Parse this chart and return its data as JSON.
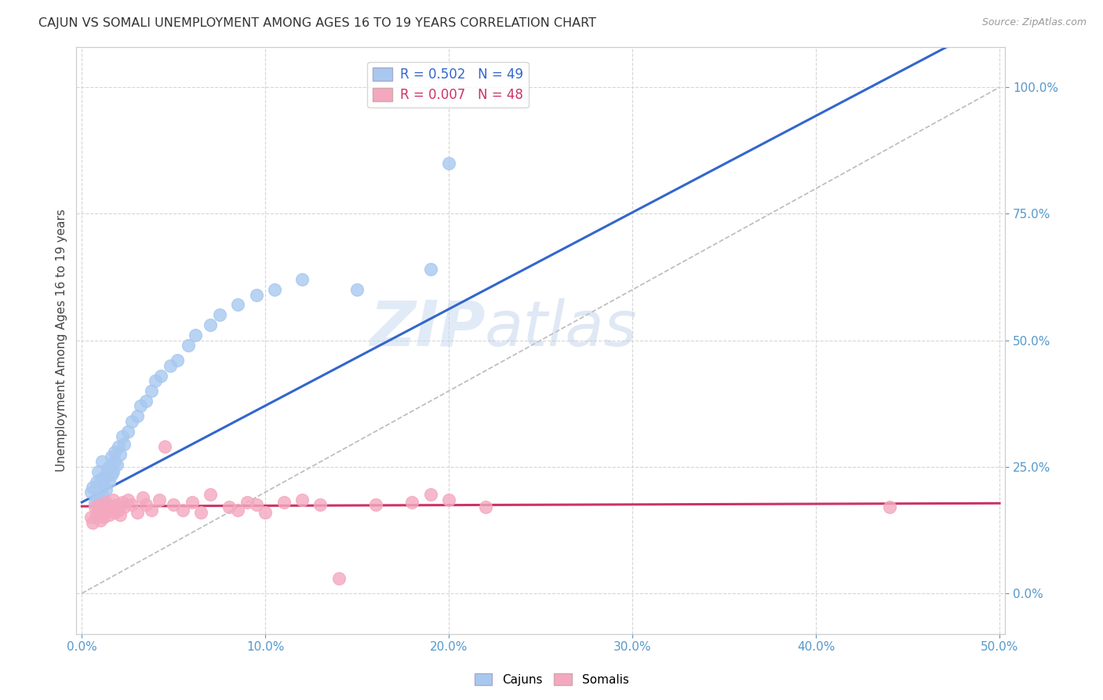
{
  "title": "CAJUN VS SOMALI UNEMPLOYMENT AMONG AGES 16 TO 19 YEARS CORRELATION CHART",
  "source": "Source: ZipAtlas.com",
  "ylabel": "Unemployment Among Ages 16 to 19 years",
  "xlim": [
    -0.003,
    0.503
  ],
  "ylim": [
    -0.08,
    1.08
  ],
  "yticks": [
    0.0,
    0.25,
    0.5,
    0.75,
    1.0
  ],
  "xticks": [
    0.0,
    0.1,
    0.2,
    0.3,
    0.4,
    0.5
  ],
  "cajun_R": 0.502,
  "cajun_N": 49,
  "somali_R": 0.007,
  "somali_N": 48,
  "cajun_color": "#a8c8f0",
  "somali_color": "#f4a8c0",
  "cajun_line_color": "#3366cc",
  "somali_line_color": "#cc3366",
  "diagonal_color": "#bbbbbb",
  "background_color": "#ffffff",
  "watermark_zip": "ZIP",
  "watermark_atlas": "atlas",
  "cajun_x": [
    0.005,
    0.006,
    0.007,
    0.008,
    0.008,
    0.009,
    0.009,
    0.01,
    0.01,
    0.011,
    0.011,
    0.012,
    0.012,
    0.013,
    0.013,
    0.014,
    0.015,
    0.015,
    0.016,
    0.016,
    0.017,
    0.018,
    0.018,
    0.019,
    0.02,
    0.021,
    0.022,
    0.023,
    0.025,
    0.027,
    0.03,
    0.032,
    0.035,
    0.038,
    0.04,
    0.043,
    0.048,
    0.052,
    0.058,
    0.062,
    0.07,
    0.075,
    0.085,
    0.095,
    0.105,
    0.12,
    0.15,
    0.19,
    0.2
  ],
  "cajun_y": [
    0.2,
    0.21,
    0.18,
    0.22,
    0.19,
    0.24,
    0.17,
    0.225,
    0.185,
    0.26,
    0.195,
    0.215,
    0.23,
    0.205,
    0.175,
    0.245,
    0.22,
    0.25,
    0.235,
    0.27,
    0.24,
    0.26,
    0.28,
    0.255,
    0.29,
    0.275,
    0.31,
    0.295,
    0.32,
    0.34,
    0.35,
    0.37,
    0.38,
    0.4,
    0.42,
    0.43,
    0.45,
    0.46,
    0.49,
    0.51,
    0.53,
    0.55,
    0.57,
    0.59,
    0.6,
    0.62,
    0.6,
    0.64,
    0.85
  ],
  "somali_x": [
    0.005,
    0.006,
    0.007,
    0.008,
    0.009,
    0.01,
    0.01,
    0.011,
    0.012,
    0.013,
    0.014,
    0.015,
    0.016,
    0.017,
    0.018,
    0.019,
    0.02,
    0.021,
    0.022,
    0.023,
    0.025,
    0.027,
    0.03,
    0.033,
    0.035,
    0.038,
    0.042,
    0.045,
    0.05,
    0.055,
    0.06,
    0.065,
    0.07,
    0.08,
    0.085,
    0.09,
    0.095,
    0.1,
    0.11,
    0.12,
    0.13,
    0.14,
    0.16,
    0.18,
    0.19,
    0.2,
    0.22,
    0.44
  ],
  "somali_y": [
    0.15,
    0.14,
    0.17,
    0.155,
    0.165,
    0.145,
    0.175,
    0.16,
    0.15,
    0.18,
    0.165,
    0.155,
    0.17,
    0.185,
    0.16,
    0.175,
    0.165,
    0.155,
    0.18,
    0.17,
    0.185,
    0.175,
    0.16,
    0.19,
    0.175,
    0.165,
    0.185,
    0.29,
    0.175,
    0.165,
    0.18,
    0.16,
    0.195,
    0.17,
    0.165,
    0.18,
    0.175,
    0.16,
    0.18,
    0.185,
    0.175,
    0.03,
    0.175,
    0.18,
    0.195,
    0.185,
    0.17,
    0.17
  ],
  "cajun_line_x": [
    0.0,
    0.22
  ],
  "cajun_line_y": [
    0.18,
    0.6
  ],
  "somali_line_x": [
    0.0,
    0.5
  ],
  "somali_line_y": [
    0.172,
    0.178
  ]
}
